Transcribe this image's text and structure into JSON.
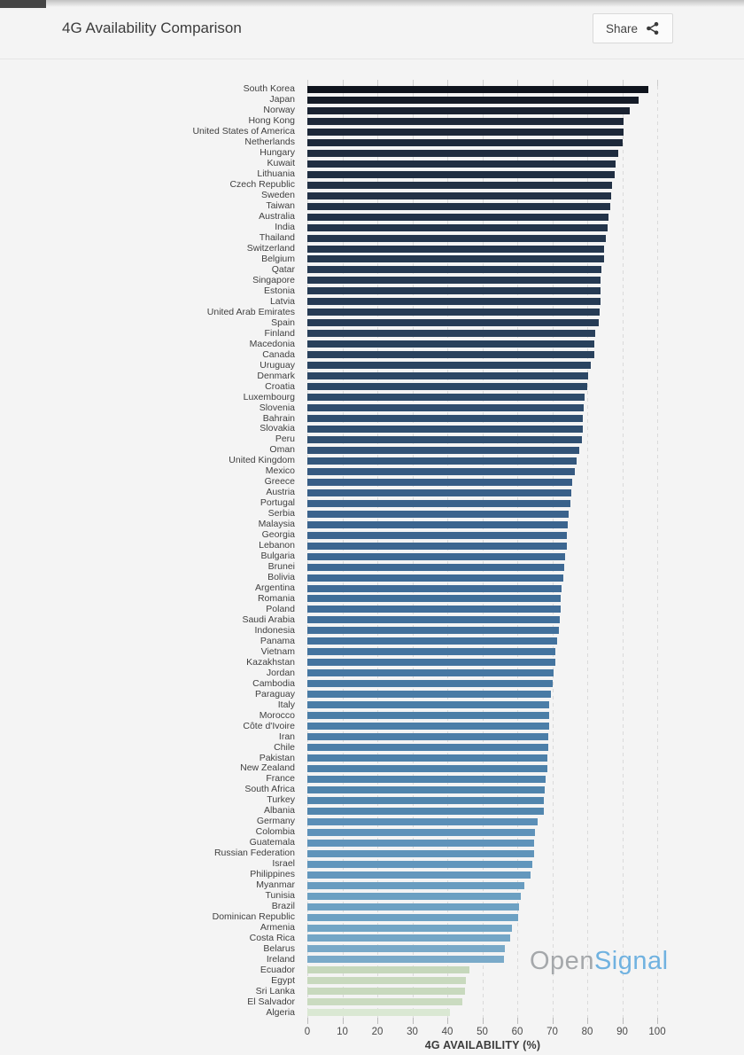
{
  "header": {
    "title": "4G Availability Comparison",
    "share_label": "Share"
  },
  "watermark": {
    "gray": "Open",
    "blue": "Signal"
  },
  "colors": {
    "background": "#f4f4f4",
    "grid": "#dadada",
    "axis_text": "#4a4a4a",
    "title_text": "#3c3c3c",
    "watermark_gray": "#a5a8ab",
    "watermark_blue": "#70b2e0"
  },
  "chart_data": {
    "type": "bar",
    "orientation": "horizontal",
    "title": "4G Availability Comparison",
    "xlabel": "4G AVAILABILITY (%)",
    "ylabel": "",
    "xlim": [
      0,
      100
    ],
    "xticks": [
      0,
      10,
      20,
      30,
      40,
      50,
      60,
      70,
      80,
      90,
      100
    ],
    "grid": "vertical-dashed",
    "legend": "none",
    "categories": [
      "South Korea",
      "Japan",
      "Norway",
      "Hong Kong",
      "United States of America",
      "Netherlands",
      "Hungary",
      "Kuwait",
      "Lithuania",
      "Czech Republic",
      "Sweden",
      "Taiwan",
      "Australia",
      "India",
      "Thailand",
      "Switzerland",
      "Belgium",
      "Qatar",
      "Singapore",
      "Estonia",
      "Latvia",
      "United Arab Emirates",
      "Spain",
      "Finland",
      "Macedonia",
      "Canada",
      "Uruguay",
      "Denmark",
      "Croatia",
      "Luxembourg",
      "Slovenia",
      "Bahrain",
      "Slovakia",
      "Peru",
      "Oman",
      "United Kingdom",
      "Mexico",
      "Greece",
      "Austria",
      "Portugal",
      "Serbia",
      "Malaysia",
      "Georgia",
      "Lebanon",
      "Bulgaria",
      "Brunei",
      "Bolivia",
      "Argentina",
      "Romania",
      "Poland",
      "Saudi Arabia",
      "Indonesia",
      "Panama",
      "Vietnam",
      "Kazakhstan",
      "Jordan",
      "Cambodia",
      "Paraguay",
      "Italy",
      "Morocco",
      "Côte d'Ivoire",
      "Iran",
      "Chile",
      "Pakistan",
      "New Zealand",
      "France",
      "South Africa",
      "Turkey",
      "Albania",
      "Germany",
      "Colombia",
      "Guatemala",
      "Russian Federation",
      "Israel",
      "Philippines",
      "Myanmar",
      "Tunisia",
      "Brazil",
      "Dominican Republic",
      "Armenia",
      "Costa Rica",
      "Belarus",
      "Ireland",
      "Ecuador",
      "Egypt",
      "Sri Lanka",
      "El Salvador",
      "Algeria"
    ],
    "values": [
      97.5,
      94.7,
      92.2,
      90.3,
      90.3,
      90.0,
      88.8,
      88.0,
      87.9,
      87.0,
      86.8,
      86.6,
      86.1,
      85.8,
      85.2,
      84.9,
      84.7,
      84.0,
      83.9,
      83.8,
      83.7,
      83.5,
      83.3,
      82.2,
      82.0,
      81.9,
      81.1,
      80.2,
      80.0,
      79.3,
      79.0,
      78.8,
      78.7,
      78.4,
      77.8,
      77.0,
      76.5,
      75.7,
      75.4,
      75.2,
      74.7,
      74.5,
      74.3,
      74.1,
      73.7,
      73.4,
      73.2,
      72.7,
      72.4,
      72.3,
      72.1,
      71.9,
      71.5,
      71.0,
      70.9,
      70.4,
      70.2,
      69.6,
      69.2,
      69.1,
      69.0,
      68.9,
      68.8,
      68.6,
      68.5,
      68.0,
      67.9,
      67.7,
      67.5,
      65.7,
      65.1,
      64.9,
      64.8,
      64.2,
      63.7,
      62.1,
      61.1,
      60.4,
      60.3,
      58.6,
      58.0,
      56.5,
      56.1,
      46.3,
      45.2,
      45.1,
      44.2,
      40.8
    ],
    "color_stops": [
      {
        "value": 98,
        "color": "#0e131b"
      },
      {
        "value": 92,
        "color": "#1a2433"
      },
      {
        "value": 86,
        "color": "#233349"
      },
      {
        "value": 80,
        "color": "#2c4866"
      },
      {
        "value": 75,
        "color": "#3a628c"
      },
      {
        "value": 71,
        "color": "#44749f"
      },
      {
        "value": 68,
        "color": "#4f83ac"
      },
      {
        "value": 65,
        "color": "#5f93ba"
      },
      {
        "value": 61,
        "color": "#6ba0c2"
      },
      {
        "value": 56,
        "color": "#7aaac9"
      },
      {
        "value": 47,
        "color": "#c3d6ba"
      },
      {
        "value": 43,
        "color": "#cdddc2"
      },
      {
        "value": 40,
        "color": "#dfecd9"
      }
    ]
  }
}
